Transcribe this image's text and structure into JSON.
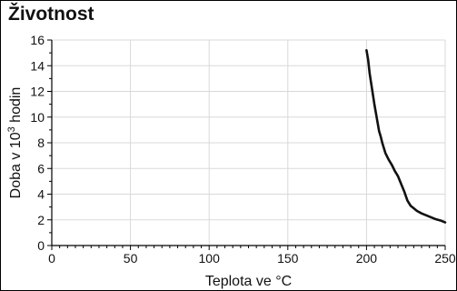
{
  "chart_data": {
    "type": "line",
    "title": "Životnost",
    "xlabel": "Teplota ve °C",
    "ylabel": {
      "text": "Doba v 10",
      "sup": "3",
      "tail": " hodin"
    },
    "xlim": [
      0,
      250
    ],
    "ylim": [
      0,
      16
    ],
    "xticks": [
      0,
      50,
      100,
      150,
      200,
      250
    ],
    "yticks": [
      0,
      2,
      4,
      6,
      8,
      10,
      12,
      14,
      16
    ],
    "x_minor_step": 5,
    "y_minor_step": 1,
    "grid": true,
    "colors": {
      "line": "#111111",
      "grid": "#d9d9d9",
      "axis": "#000000"
    },
    "series": [
      {
        "x": [
          200,
          201,
          202,
          203,
          204,
          205,
          206,
          207,
          208,
          209,
          210,
          212,
          214,
          216,
          218,
          220,
          222,
          224,
          226,
          228,
          230,
          232,
          235,
          238,
          241,
          244,
          247,
          250
        ],
        "y": [
          15.2,
          14.5,
          13.4,
          12.6,
          11.8,
          11.0,
          10.3,
          9.6,
          8.9,
          8.5,
          8.0,
          7.2,
          6.7,
          6.3,
          5.8,
          5.4,
          4.8,
          4.2,
          3.5,
          3.1,
          2.9,
          2.7,
          2.5,
          2.35,
          2.2,
          2.05,
          1.95,
          1.8
        ]
      }
    ]
  }
}
